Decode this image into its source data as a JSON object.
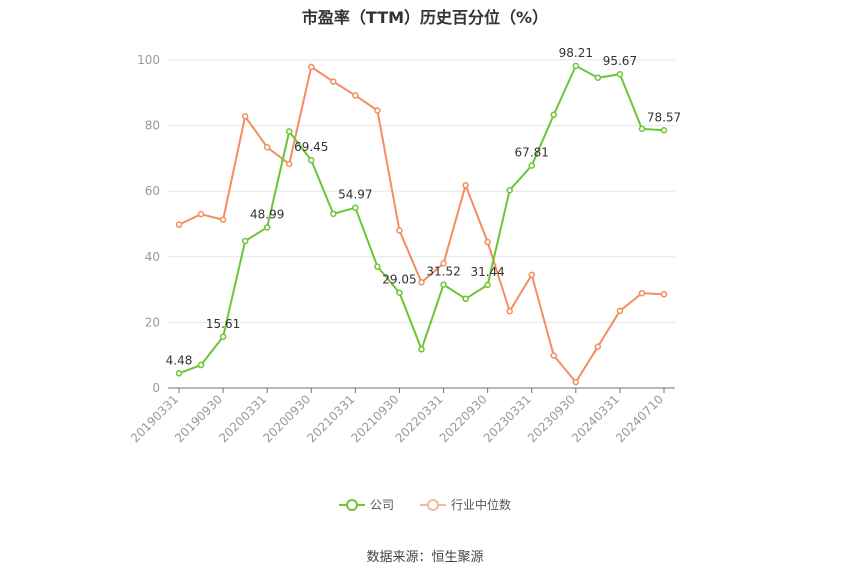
{
  "chart_data": {
    "type": "line",
    "title": "市盈率（TTM）历史百分位（%）",
    "xlabel": "",
    "ylabel": "",
    "ylim": [
      0,
      100
    ],
    "yticks": [
      "0",
      "20",
      "40",
      "60",
      "80",
      "100"
    ],
    "grid": true,
    "legend_position": "bottom",
    "categories": [
      "20190331",
      "20190630",
      "20190930",
      "20191231",
      "20200331",
      "20200630",
      "20200930",
      "20201231",
      "20210331",
      "20210630",
      "20210930",
      "20211231",
      "20220331",
      "20220630",
      "20220930",
      "20221231",
      "20230331",
      "20230630",
      "20230930",
      "20231231",
      "20240331",
      "20240630",
      "20240710"
    ],
    "xtick_labels": [
      "20190331",
      "20190930",
      "20200331",
      "20200930",
      "20210331",
      "20210930",
      "20220331",
      "20220930",
      "20230331",
      "20230930",
      "20240331",
      "20240710"
    ],
    "series": [
      {
        "name": "公司",
        "color": "#6cc535",
        "values": [
          4.48,
          7.0,
          15.61,
          44.8,
          48.99,
          78.2,
          69.45,
          53.1,
          54.97,
          37.0,
          29.05,
          11.8,
          31.52,
          27.2,
          31.44,
          60.3,
          67.81,
          83.3,
          98.21,
          94.6,
          95.67,
          79.0,
          78.57
        ],
        "data_labels": {
          "0": "4.48",
          "2": "15.61",
          "4": "48.99",
          "6": "69.45",
          "8": "54.97",
          "10": "29.05",
          "12": "31.52",
          "14": "31.44",
          "16": "67.81",
          "18": "98.21",
          "20": "95.67",
          "22": "78.57"
        }
      },
      {
        "name": "行业中位数",
        "color": "#f28e5f",
        "values": [
          49.8,
          53.0,
          51.3,
          82.8,
          73.4,
          68.3,
          97.9,
          93.4,
          89.2,
          84.6,
          48.0,
          32.2,
          38.0,
          61.8,
          44.5,
          23.4,
          34.5,
          9.9,
          1.8,
          12.6,
          23.5,
          28.9,
          28.6
        ]
      }
    ]
  },
  "source_note": "数据来源：恒生聚源"
}
